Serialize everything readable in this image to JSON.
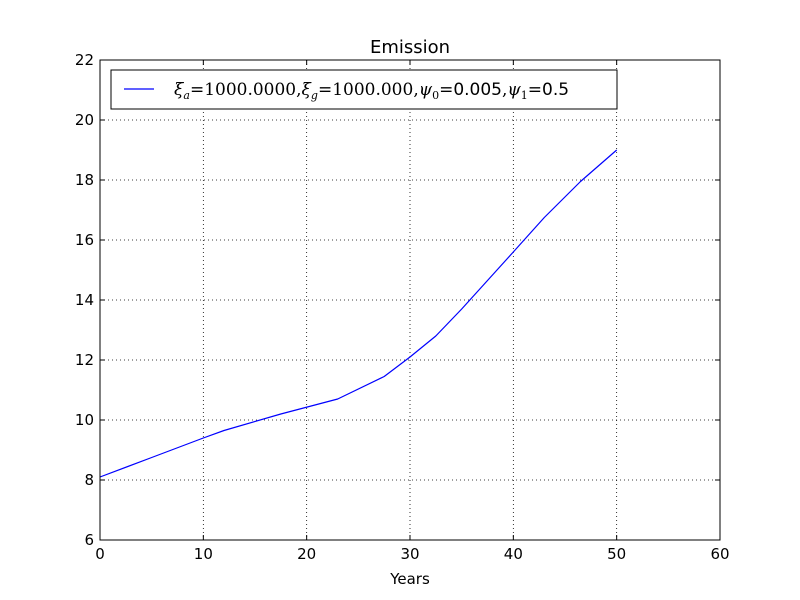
{
  "chart_data": {
    "type": "line",
    "title": "Emission",
    "xlabel": "Years",
    "ylabel": "",
    "xlim": [
      0,
      60
    ],
    "ylim": [
      6,
      22
    ],
    "xticks": [
      0,
      10,
      20,
      30,
      40,
      50,
      60
    ],
    "yticks": [
      6,
      8,
      10,
      12,
      14,
      16,
      18,
      20,
      22
    ],
    "xtick_labels": [
      "0",
      "10",
      "20",
      "30",
      "40",
      "50",
      "60"
    ],
    "ytick_labels": [
      "6",
      "8",
      "10",
      "12",
      "14",
      "16",
      "18",
      "20",
      "22"
    ],
    "grid": true,
    "grid_style": "dotted",
    "legend_position": "top-left",
    "series": [
      {
        "name": "ξa = 1000.0000, ξg = 1000.000, ψ0 = 0.005, ψ1 = 0.5",
        "color": "#0000ff",
        "x": [
          0,
          5,
          10,
          12,
          17.5,
          23,
          27.5,
          30,
          32.5,
          35,
          37.5,
          40,
          43,
          46.5,
          50
        ],
        "y": [
          8.1,
          8.75,
          9.4,
          9.65,
          10.2,
          10.7,
          11.45,
          12.1,
          12.8,
          13.7,
          14.65,
          15.6,
          16.75,
          17.95,
          19.0
        ]
      }
    ]
  },
  "legend": {
    "xi_a_value": "1000.0000",
    "xi_g_value": "1000.000",
    "psi0_value": "0.005",
    "psi1_value": "0.5"
  }
}
